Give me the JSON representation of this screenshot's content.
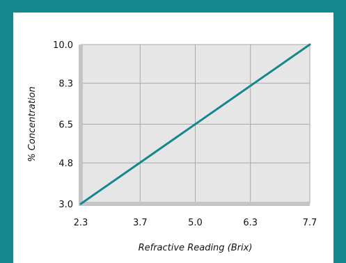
{
  "colors": {
    "frame": "#14878d",
    "card": "#ffffff",
    "plot_background": "#e6e6e6",
    "gridline": "#a9a9a9",
    "axis_band": "#c4c4c4",
    "series_line": "#14878d"
  },
  "chart_data": {
    "type": "line",
    "xlabel": "Refractive Reading (Brix)",
    "ylabel": "% Concentration",
    "xlim": [
      2.3,
      7.7
    ],
    "ylim": [
      3.0,
      10.0
    ],
    "x_ticks": [
      2.3,
      3.7,
      5.0,
      6.3,
      7.7
    ],
    "x_tick_labels": [
      "2.3",
      "3.7",
      "5.0",
      "6.3",
      "7.7"
    ],
    "y_ticks": [
      3.0,
      4.8,
      6.5,
      8.3,
      10.0
    ],
    "y_tick_labels": [
      "3.0",
      "4.8",
      "6.5",
      "8.3",
      "10.0"
    ],
    "grid": true,
    "legend": "none",
    "series": [
      {
        "x": [
          2.3,
          7.7
        ],
        "y": [
          3.0,
          10.0
        ],
        "color": "#14878d"
      }
    ]
  }
}
